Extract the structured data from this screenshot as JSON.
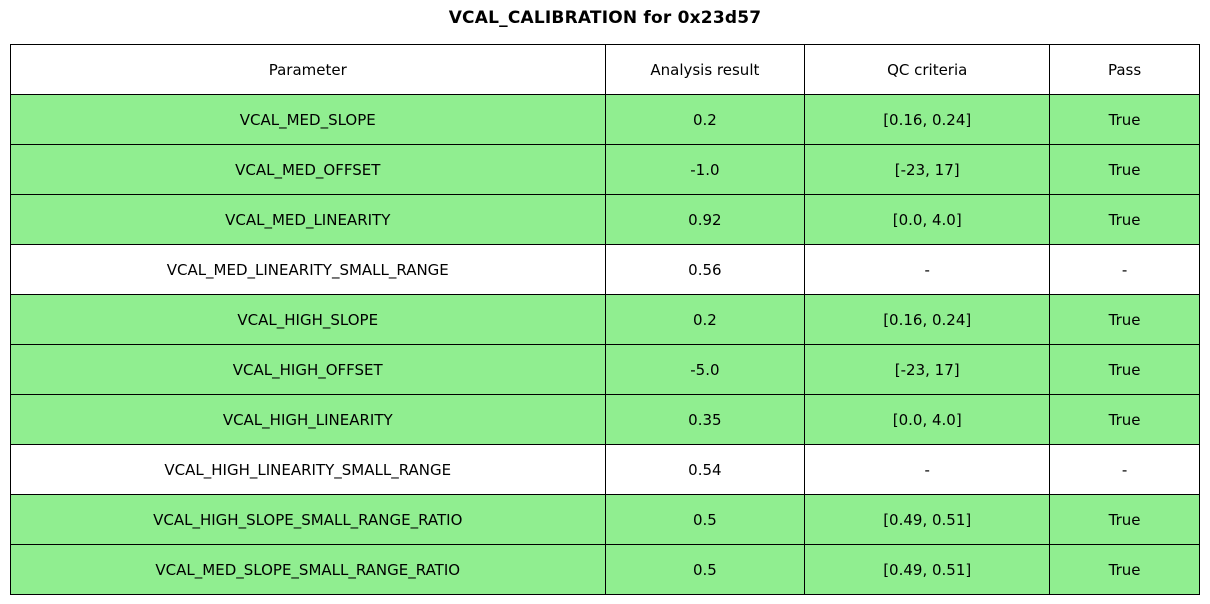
{
  "colors": {
    "pass_row": "#90ee90",
    "neutral_row": "#ffffff",
    "border": "#000000"
  },
  "chart_data": {
    "type": "table",
    "title": "VCAL_CALIBRATION for 0x23d57",
    "columns": [
      "Parameter",
      "Analysis result",
      "QC criteria",
      "Pass"
    ],
    "rows": [
      [
        "VCAL_MED_SLOPE",
        "0.2",
        "[0.16, 0.24]",
        "True"
      ],
      [
        "VCAL_MED_OFFSET",
        "-1.0",
        "[-23, 17]",
        "True"
      ],
      [
        "VCAL_MED_LINEARITY",
        "0.92",
        "[0.0, 4.0]",
        "True"
      ],
      [
        "VCAL_MED_LINEARITY_SMALL_RANGE",
        "0.56",
        "-",
        "-"
      ],
      [
        "VCAL_HIGH_SLOPE",
        "0.2",
        "[0.16, 0.24]",
        "True"
      ],
      [
        "VCAL_HIGH_OFFSET",
        "-5.0",
        "[-23, 17]",
        "True"
      ],
      [
        "VCAL_HIGH_LINEARITY",
        "0.35",
        "[0.0, 4.0]",
        "True"
      ],
      [
        "VCAL_HIGH_LINEARITY_SMALL_RANGE",
        "0.54",
        "-",
        "-"
      ],
      [
        "VCAL_HIGH_SLOPE_SMALL_RANGE_RATIO",
        "0.5",
        "[0.49, 0.51]",
        "True"
      ],
      [
        "VCAL_MED_SLOPE_SMALL_RANGE_RATIO",
        "0.5",
        "[0.49, 0.51]",
        "True"
      ]
    ],
    "row_highlight": [
      true,
      true,
      true,
      false,
      true,
      true,
      true,
      false,
      true,
      true
    ],
    "legend_position": "none",
    "grid": true
  }
}
